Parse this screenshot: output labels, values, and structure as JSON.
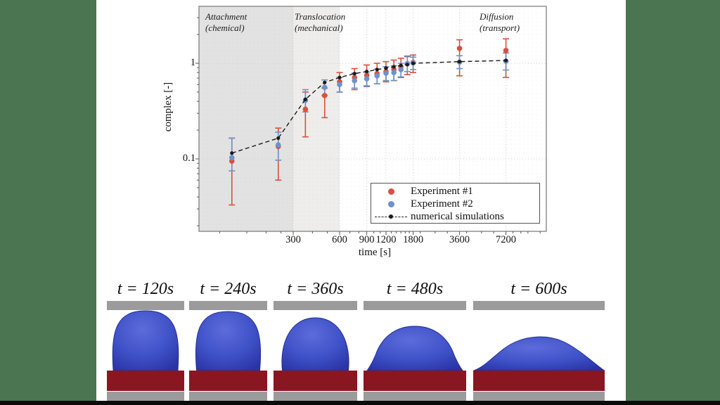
{
  "colors": {
    "margin_green": "#4b7451",
    "bottom_bar_black": "#0b0b0b",
    "region_attachment_gray": "#e2e2e2",
    "region_translocation_gray": "#eeedeb",
    "grid_gray": "#cccccc",
    "axis_gray": "#808080",
    "experiment1_red": "#d9503e",
    "experiment2_blue": "#6b92cb",
    "simulation_black": "#1a1a1a",
    "droplet_blue": "#4052c8",
    "substrate_maroon": "#8a1622",
    "wall_gray": "#9b9b9b"
  },
  "chart_data": {
    "type": "scatter",
    "title": "",
    "xlabel": "time [s]",
    "ylabel": "complex [-]",
    "xscale": "log",
    "yscale": "log",
    "xlim": [
      75,
      13000
    ],
    "ylim": [
      0.017,
      4.2
    ],
    "grid": true,
    "legend_position": "lower right inside",
    "xticks": [
      {
        "t": 300,
        "label": "300"
      },
      {
        "t": 600,
        "label": "600"
      },
      {
        "t": 900,
        "label": "900"
      },
      {
        "t": 1200,
        "label": "1200"
      },
      {
        "t": 1800,
        "label": "1800"
      },
      {
        "t": 3600,
        "label": "3600"
      },
      {
        "t": 7200,
        "label": "7200"
      }
    ],
    "yticks": [
      {
        "v": 1,
        "label": "1"
      },
      {
        "v": 0.1,
        "label": "0.1"
      }
    ],
    "regions": [
      {
        "label": [
          "Attachment",
          "(chemical)"
        ],
        "t_range": [
          null,
          300
        ]
      },
      {
        "label": [
          "Translocation",
          "(mechanical)"
        ],
        "t_range": [
          300,
          600
        ]
      },
      {
        "label": [
          "Diffusion",
          "(transport)"
        ],
        "t_range": [
          600,
          null
        ]
      }
    ],
    "series": [
      {
        "name": "Experiment #1",
        "type": "scatter+errorbar",
        "color": "#d9503e",
        "t": [
          120,
          240,
          360,
          480,
          600,
          750,
          900,
          1050,
          1200,
          1350,
          1500,
          1650,
          1800,
          3600,
          7200
        ],
        "values": [
          0.095,
          0.135,
          0.33,
          0.46,
          0.64,
          0.71,
          0.75,
          0.78,
          0.82,
          0.86,
          0.92,
          0.99,
          1.02,
          1.43,
          1.36
        ],
        "err_lo": [
          0.033,
          0.06,
          0.17,
          0.27,
          0.5,
          0.53,
          0.58,
          0.61,
          0.64,
          0.66,
          0.71,
          0.76,
          0.8,
          0.74,
          0.71
        ],
        "err_hi": [
          0.165,
          0.21,
          0.5,
          0.55,
          0.8,
          0.88,
          0.96,
          1.0,
          1.04,
          1.08,
          1.13,
          1.19,
          1.22,
          1.76,
          1.8
        ]
      },
      {
        "name": "Experiment #2",
        "type": "scatter+errorbar",
        "color": "#6b92cb",
        "t": [
          120,
          240,
          360,
          480,
          600,
          750,
          900,
          1050,
          1200,
          1350,
          1500,
          1650,
          1800,
          3600,
          7200
        ],
        "values": [
          0.103,
          0.14,
          0.41,
          0.56,
          0.6,
          0.66,
          0.69,
          0.74,
          0.79,
          0.8,
          0.86,
          0.99,
          1.01,
          1.03,
          1.05
        ],
        "err_lo": [
          0.075,
          0.097,
          0.31,
          0.46,
          0.5,
          0.55,
          0.57,
          0.61,
          0.66,
          0.66,
          0.72,
          0.82,
          0.86,
          0.88,
          0.85
        ],
        "err_hi": [
          0.165,
          0.19,
          0.53,
          0.67,
          0.71,
          0.79,
          0.81,
          0.87,
          0.92,
          0.94,
          1.0,
          1.17,
          1.16,
          1.2,
          1.28
        ]
      },
      {
        "name": "numerical simulations",
        "type": "dashed-line+marker",
        "color": "#1a1a1a",
        "t": [
          120,
          240,
          360,
          480,
          600,
          750,
          900,
          1050,
          1200,
          1350,
          1500,
          1650,
          1800,
          3600,
          7200
        ],
        "values": [
          0.115,
          0.165,
          0.42,
          0.63,
          0.71,
          0.78,
          0.82,
          0.86,
          0.89,
          0.92,
          0.95,
          0.97,
          1.0,
          1.04,
          1.07
        ]
      }
    ]
  },
  "snapshots": {
    "items": [
      {
        "label": "t = 120s",
        "shape": "sphere"
      },
      {
        "label": "t = 240s",
        "shape": "sphere-wide"
      },
      {
        "label": "t = 360s",
        "shape": "egg"
      },
      {
        "label": "t = 480s",
        "shape": "dome"
      },
      {
        "label": "t = 600s",
        "shape": "pancake"
      }
    ]
  }
}
